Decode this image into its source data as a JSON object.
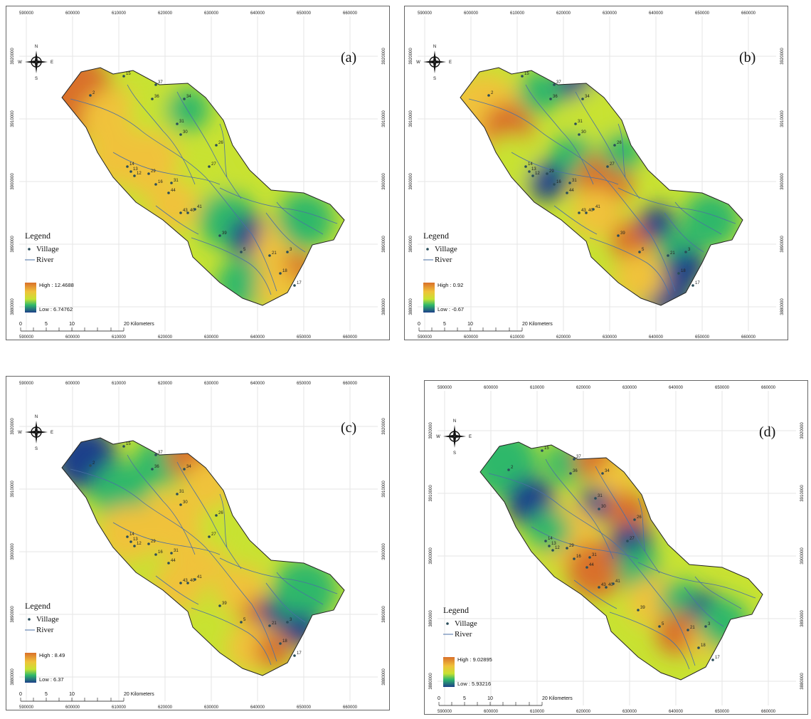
{
  "x_ticks": [
    "590000",
    "600000",
    "610000",
    "620000",
    "630000",
    "640000",
    "650000",
    "660000"
  ],
  "y_ticks": [
    "3920000",
    "3910000",
    "3900000",
    "3890000",
    "3880000"
  ],
  "compass": {
    "n": "N",
    "s": "S",
    "e": "E",
    "w": "W"
  },
  "legend": {
    "title": "Legend",
    "village": "Village",
    "river": "River"
  },
  "scale_labels": [
    "0",
    "5",
    "10",
    "20 Kilometers"
  ],
  "panels": [
    {
      "id": "a",
      "label": "(a)",
      "high": "High : 12.4688",
      "low": "Low : 6.74762"
    },
    {
      "id": "b",
      "label": "(b)",
      "high": "High : 0.92",
      "low": "Low : -0.67"
    },
    {
      "id": "c",
      "label": "(c)",
      "high": "High : 8.49",
      "low": "Low : 6.37"
    },
    {
      "id": "d",
      "label": "(d)",
      "high": "High : 9.02895",
      "low": "Low : 5.93216"
    }
  ],
  "villages": [
    "2",
    "15",
    "37",
    "36",
    "34",
    "31",
    "30",
    "26",
    "27",
    "14",
    "13",
    "12",
    "29",
    "16",
    "31",
    "44",
    "43",
    "40",
    "41",
    "39",
    "5",
    "21",
    "3",
    "18",
    "17"
  ],
  "colors": {
    "high": "#d9702a",
    "mid_high": "#f0c23a",
    "mid": "#c8e232",
    "mid_low": "#2fb86a",
    "low": "#1d3f8a",
    "village": "#2a4d5a",
    "river": "#4a6fa5"
  }
}
